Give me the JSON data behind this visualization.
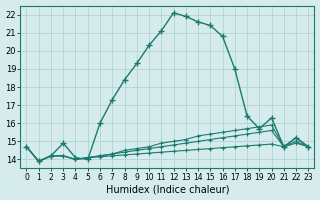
{
  "xlabel": "Humidex (Indice chaleur)",
  "xlim": [
    -0.5,
    23.5
  ],
  "ylim": [
    13.5,
    22.5
  ],
  "xticks": [
    0,
    1,
    2,
    3,
    4,
    5,
    6,
    7,
    8,
    9,
    10,
    11,
    12,
    13,
    14,
    15,
    16,
    17,
    18,
    19,
    20,
    21,
    22,
    23
  ],
  "yticks": [
    14,
    15,
    16,
    17,
    18,
    19,
    20,
    21,
    22
  ],
  "bg_color": "#d6ecec",
  "line_color": "#1a7a6e",
  "grid_color": "#b0d4d4",
  "series": [
    {
      "x": [
        0,
        1,
        2,
        3,
        4,
        5,
        6,
        7,
        8,
        9,
        10,
        11,
        12,
        13,
        14,
        15,
        16,
        17,
        18,
        19,
        20,
        21,
        22,
        23
      ],
      "y": [
        14.7,
        13.9,
        14.2,
        14.9,
        14.1,
        14.0,
        16.0,
        17.3,
        18.4,
        19.3,
        20.3,
        21.1,
        22.1,
        21.9,
        21.6,
        21.4,
        20.8,
        19.0,
        16.4,
        15.7,
        16.3,
        14.7,
        15.2,
        14.7
      ]
    },
    {
      "x": [
        0,
        1,
        2,
        3,
        4,
        5,
        6,
        7,
        8,
        9,
        10,
        11,
        12,
        13,
        14,
        15,
        16,
        17,
        18,
        19,
        20,
        21,
        22,
        23
      ],
      "y": [
        14.7,
        13.9,
        14.2,
        14.2,
        14.0,
        14.1,
        14.2,
        14.3,
        14.5,
        14.6,
        14.7,
        14.9,
        15.0,
        15.1,
        15.3,
        15.4,
        15.5,
        15.6,
        15.7,
        15.8,
        15.9,
        14.7,
        15.2,
        14.7
      ]
    },
    {
      "x": [
        0,
        1,
        2,
        3,
        4,
        5,
        6,
        7,
        8,
        9,
        10,
        11,
        12,
        13,
        14,
        15,
        16,
        17,
        18,
        19,
        20,
        21,
        22,
        23
      ],
      "y": [
        14.7,
        13.9,
        14.2,
        14.2,
        14.0,
        14.1,
        14.2,
        14.3,
        14.4,
        14.5,
        14.6,
        14.7,
        14.8,
        14.9,
        15.0,
        15.1,
        15.2,
        15.3,
        15.4,
        15.5,
        15.6,
        14.7,
        15.0,
        14.7
      ]
    },
    {
      "x": [
        0,
        1,
        2,
        3,
        4,
        5,
        6,
        7,
        8,
        9,
        10,
        11,
        12,
        13,
        14,
        15,
        16,
        17,
        18,
        19,
        20,
        21,
        22,
        23
      ],
      "y": [
        14.7,
        13.9,
        14.2,
        14.2,
        14.0,
        14.1,
        14.15,
        14.2,
        14.25,
        14.3,
        14.35,
        14.4,
        14.45,
        14.5,
        14.55,
        14.6,
        14.65,
        14.7,
        14.75,
        14.8,
        14.85,
        14.7,
        14.9,
        14.7
      ]
    }
  ]
}
